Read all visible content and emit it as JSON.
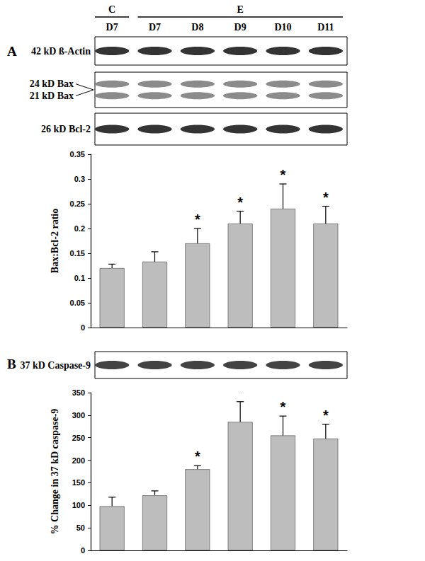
{
  "figure": {
    "groups": [
      {
        "label": "C",
        "lanes": [
          "D7"
        ]
      },
      {
        "label": "E",
        "lanes": [
          "D7",
          "D8",
          "D9",
          "D10",
          "D11"
        ]
      }
    ],
    "panels": [
      {
        "label": "A",
        "blots": [
          {
            "labels": [
              "42 kD ß-Actin"
            ]
          },
          {
            "labels": [
              "24 kD Bax",
              "21 kD Bax"
            ]
          },
          {
            "labels": [
              "26 kD Bcl-2"
            ]
          }
        ]
      },
      {
        "label": "B",
        "blots": [
          {
            "labels": [
              "37 kD Caspase-9"
            ]
          }
        ]
      }
    ]
  },
  "chart_data": [
    {
      "type": "bar",
      "ylabel": "Bax:Bcl-2 ratio",
      "categories": [
        null,
        null,
        null,
        null,
        null,
        null
      ],
      "values": [
        0.12,
        0.133,
        0.17,
        0.21,
        0.24,
        0.21
      ],
      "errors": [
        0.008,
        0.02,
        0.03,
        0.025,
        0.05,
        0.035
      ],
      "significance": [
        null,
        null,
        "*",
        "*",
        "*",
        "*"
      ],
      "color": "#bdbdbd",
      "ylim": [
        0,
        0.35
      ],
      "yticks": [
        0,
        0.05,
        0.1,
        0.15,
        0.2,
        0.25,
        0.3,
        0.35
      ],
      "grid": false,
      "tick_labels": "y"
    },
    {
      "type": "bar",
      "ylabel": "% Change in 37 kD caspase-9",
      "categories": [
        null,
        null,
        null,
        null,
        null,
        null
      ],
      "values": [
        98,
        122,
        180,
        285,
        255,
        248
      ],
      "errors": [
        20,
        10,
        8,
        45,
        43,
        32
      ],
      "significance": [
        null,
        null,
        "*",
        "*",
        "*",
        "*"
      ],
      "color": "#bdbdbd",
      "ylim": [
        0,
        350
      ],
      "yticks": [
        0,
        50,
        100,
        150,
        200,
        250,
        300,
        350
      ],
      "grid": false,
      "tick_labels": "y"
    }
  ]
}
